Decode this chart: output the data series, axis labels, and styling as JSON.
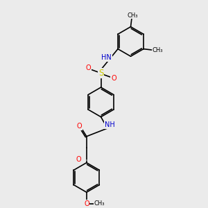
{
  "bg_color": "#ebebeb",
  "bond_color": "#000000",
  "N_color": "#0000cd",
  "O_color": "#ff0000",
  "S_color": "#cccc00",
  "font_size": 7.0,
  "lw": 1.2,
  "figsize": [
    3.0,
    3.0
  ],
  "dpi": 100,
  "xlim": [
    0,
    10
  ],
  "ylim": [
    0,
    10
  ]
}
